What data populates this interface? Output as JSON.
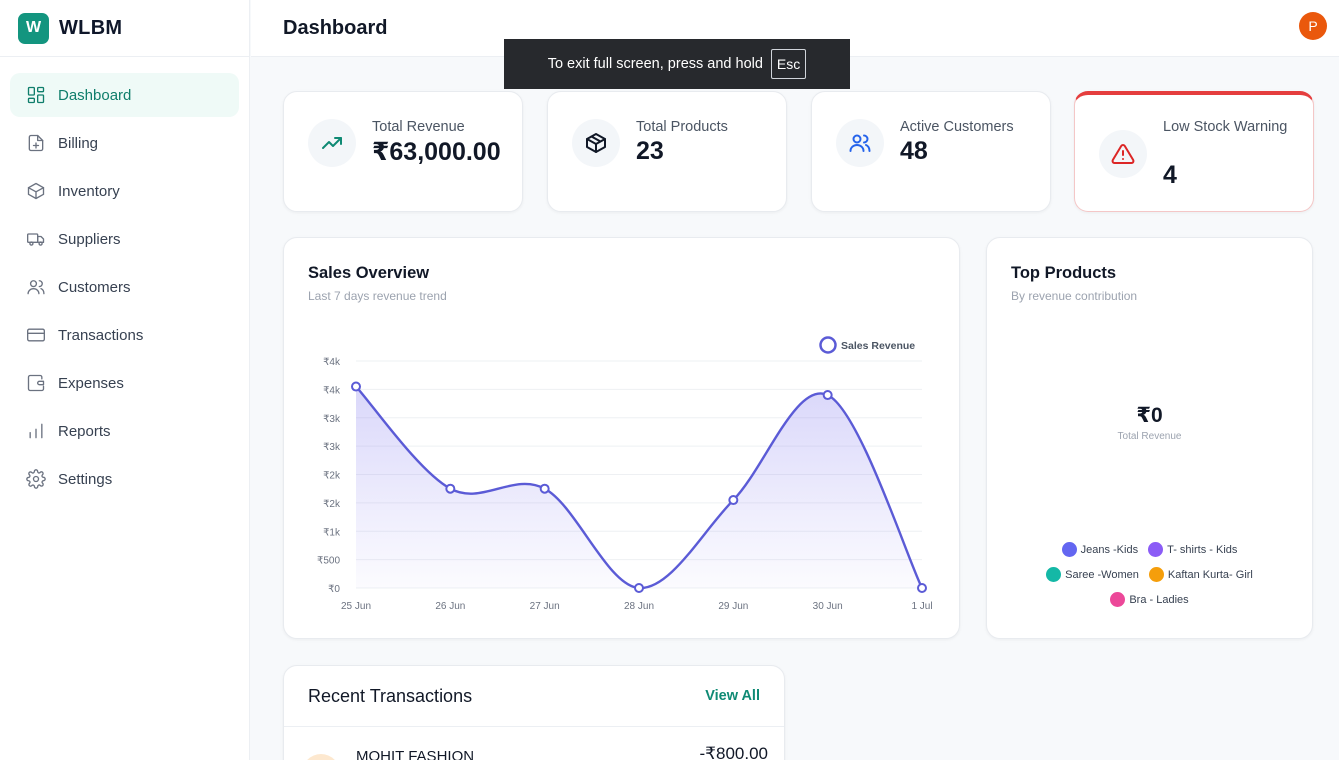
{
  "brand": {
    "logo_letter": "W",
    "name": "WLBM"
  },
  "sidebar": {
    "items": [
      {
        "label": "Dashboard",
        "icon": "dashboard-icon",
        "active": true
      },
      {
        "label": "Billing",
        "icon": "billing-icon"
      },
      {
        "label": "Inventory",
        "icon": "box-icon"
      },
      {
        "label": "Suppliers",
        "icon": "truck-icon"
      },
      {
        "label": "Customers",
        "icon": "users-icon"
      },
      {
        "label": "Transactions",
        "icon": "card-icon"
      },
      {
        "label": "Expenses",
        "icon": "wallet-icon"
      },
      {
        "label": "Reports",
        "icon": "bar-chart-icon"
      },
      {
        "label": "Settings",
        "icon": "gear-icon"
      }
    ]
  },
  "header": {
    "title": "Dashboard",
    "avatar_letter": "P"
  },
  "fullscreen_toast": {
    "text": "To exit full screen, press and hold",
    "key": "Esc"
  },
  "stats": [
    {
      "label": "Total Revenue",
      "value": "₹63,000.00",
      "icon": "trending-up-icon",
      "color": "#0f8a74"
    },
    {
      "label": "Total Products",
      "value": "23",
      "icon": "package-icon",
      "color": "#111827"
    },
    {
      "label": "Active Customers",
      "value": "48",
      "icon": "users-icon",
      "color": "#2563eb"
    },
    {
      "label": "Low Stock Warning",
      "value": "4",
      "icon": "alert-triangle-icon",
      "color": "#dc2626"
    }
  ],
  "sales_overview": {
    "title": "Sales Overview",
    "subtitle": "Last 7 days revenue trend"
  },
  "chart_data": {
    "type": "area",
    "categories": [
      "25 Jun",
      "26 Jun",
      "27 Jun",
      "28 Jun",
      "29 Jun",
      "30 Jun",
      "1 Jul"
    ],
    "series": [
      {
        "name": "Sales Revenue",
        "values": [
          3550,
          1750,
          1750,
          0,
          1550,
          3400,
          0
        ],
        "color": "#5b5bd6"
      }
    ],
    "ylim": [
      0,
      4000
    ],
    "yticks": [
      0,
      500,
      1000,
      1500,
      2000,
      2500,
      3000,
      3500,
      4000
    ],
    "ytick_labels": [
      "₹0",
      "₹500",
      "₹1k",
      "₹2k",
      "₹2k",
      "₹3k",
      "₹3k",
      "₹4k",
      "₹4k"
    ],
    "legend": "top-right",
    "grid": true
  },
  "top_products": {
    "title": "Top Products",
    "subtitle": "By revenue contribution",
    "total_value": "₹0",
    "total_label": "Total Revenue",
    "legend": [
      {
        "label": "Jeans -Kids",
        "color": "#6366f1"
      },
      {
        "label": "T- shirts - Kids",
        "color": "#8b5cf6"
      },
      {
        "label": "Saree -Women",
        "color": "#14b8a6"
      },
      {
        "label": "Kaftan Kurta- Girl",
        "color": "#f59e0b"
      },
      {
        "label": "Bra - Ladies",
        "color": "#ec4899"
      }
    ]
  },
  "transactions": {
    "title": "Recent Transactions",
    "view_all": "View All",
    "items": [
      {
        "name": "MOHIT FASHION",
        "amount": "-₹800.00"
      }
    ]
  }
}
